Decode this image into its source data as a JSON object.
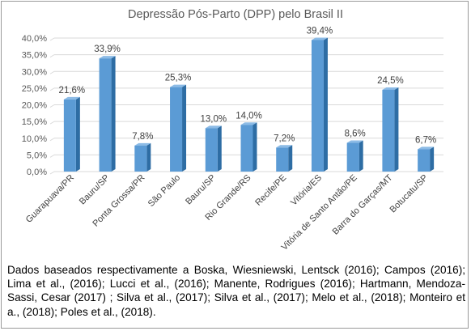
{
  "chart_data": {
    "type": "bar",
    "title": "Depressão Pós-Parto (DPP) pelo Brasil II",
    "categories": [
      "Guarapuava/PR",
      "Bauru/SP",
      "Ponta Grossa/PR",
      "São Paulo",
      "Bauru/SP",
      "Rio Grande/RS",
      "Recife/PE",
      "Vitória/ES",
      "Vitória de Santo Antão/PE",
      "Barra do Garças/MT",
      "Botucatu/SP"
    ],
    "values": [
      21.6,
      33.9,
      7.8,
      25.3,
      13.0,
      14.0,
      7.2,
      39.4,
      8.6,
      24.5,
      6.7
    ],
    "data_labels": [
      "21,6%",
      "33,9%",
      "7,8%",
      "25,3%",
      "13,0%",
      "14,0%",
      "7,2%",
      "39,4%",
      "8,6%",
      "24,5%",
      "6,7%"
    ],
    "ylim": [
      0,
      40
    ],
    "yticks": [
      0,
      5,
      10,
      15,
      20,
      25,
      30,
      35,
      40
    ],
    "ytick_labels": [
      "0,0%",
      "5,0%",
      "10,0%",
      "15,0%",
      "20,0%",
      "25,0%",
      "30,0%",
      "35,0%",
      "40,0%"
    ],
    "grid": true,
    "bar_color": "#5b9bd5",
    "bar_side_color": "#2e6da4",
    "bar_top_color": "#8cbbe6",
    "xlabel": "",
    "ylabel": ""
  },
  "caption": "Dados baseados respectivamente a Boska, Wiesniewski, Lentsck (2016); Campos (2016); Lima et al., (2016); Lucci et al., (2016); Manente, Rodrigues (2016); Hartmann, Mendoza-Sassi, Cesar (2017) ; Silva et al., (2017); Silva et al., (2017); Melo et al., (2018); Monteiro et a., (2018); Poles et al., (2018)."
}
